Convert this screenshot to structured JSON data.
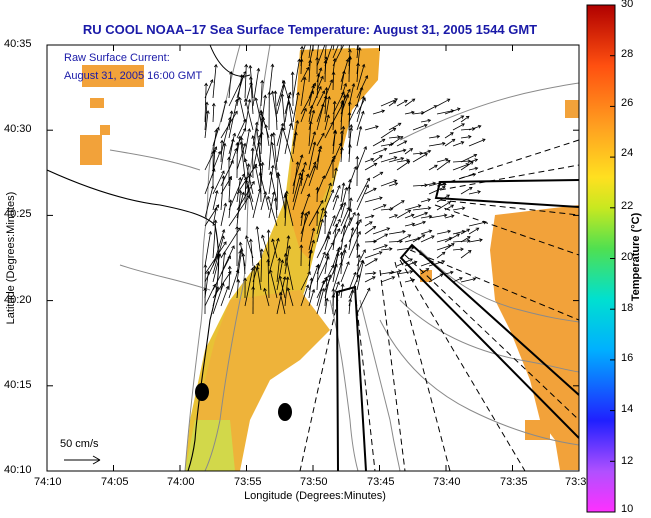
{
  "title": "RU COOL  NOAA–17  Sea Surface Temperature:  August 31, 2005 1544 GMT",
  "legend": {
    "line1": "Raw Surface Current:",
    "line2": "August 31, 2005 16:00 GMT"
  },
  "axes": {
    "x_label": "Longitude (Degrees:Minutes)",
    "y_label": "Latitude (Degrees:Minutes)",
    "x_ticks": [
      "74:10",
      "74:05",
      "74:00",
      "73:55",
      "73:50",
      "73:45",
      "73:40",
      "73:35",
      "73:3"
    ],
    "y_ticks": [
      "40:35",
      "40:30",
      "40:25",
      "40:20",
      "40:15",
      "40:10"
    ]
  },
  "colorbar": {
    "label": "Temperature (°C)",
    "ticks": [
      "30",
      "28",
      "26",
      "24",
      "22",
      "20",
      "18",
      "16",
      "14",
      "12",
      "10"
    ],
    "min": 10,
    "max": 30
  },
  "scale_label": "50 cm/s",
  "colors": {
    "title": "#1a1aa8",
    "warm": "#f2a23a",
    "yellow": "#e8c235",
    "land_yellow": "#d8d84a"
  }
}
